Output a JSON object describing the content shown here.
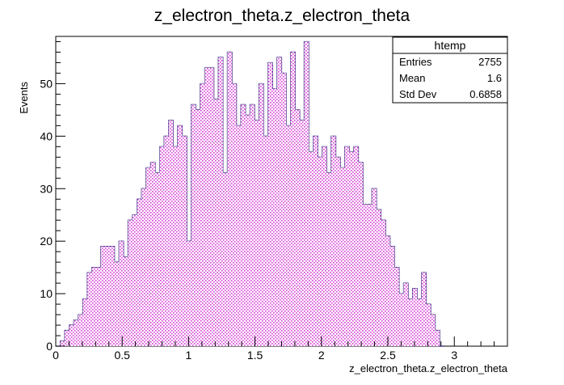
{
  "chart_data": {
    "type": "bar",
    "title": "z_electron_theta.z_electron_theta",
    "xlabel": "z_electron_theta.z_electron_theta",
    "ylabel": "Events",
    "xlim": [
      0,
      3.4
    ],
    "ylim": [
      0,
      59
    ],
    "bin_width": 0.034,
    "x_ticks": [
      0,
      0.5,
      1,
      1.5,
      2,
      2.5,
      3
    ],
    "x_tick_labels": [
      "0",
      "0.5",
      "1",
      "1.5",
      "2",
      "2.5",
      "3"
    ],
    "y_ticks": [
      0,
      10,
      20,
      30,
      40,
      50
    ],
    "y_tick_labels": [
      "0",
      "10",
      "20",
      "30",
      "40",
      "50"
    ],
    "values": [
      0,
      1,
      3,
      4,
      5,
      6,
      9,
      14,
      15,
      15,
      19,
      19,
      19,
      16,
      20,
      17,
      24,
      25,
      28,
      30,
      34,
      35,
      33,
      38,
      40,
      43,
      38,
      42,
      40,
      20,
      46,
      45,
      50,
      53,
      53,
      47,
      55,
      33,
      56,
      50,
      42,
      46,
      44,
      46,
      43,
      50,
      40,
      54,
      49,
      55,
      52,
      42,
      56,
      45,
      43,
      58,
      37,
      40,
      36,
      38,
      33,
      40,
      36,
      34,
      38,
      37,
      38,
      35,
      27,
      27,
      30,
      26,
      24,
      21,
      19,
      15,
      10,
      12,
      9,
      11,
      9,
      14,
      8,
      6,
      3,
      0
    ],
    "stats_box": {
      "title": "htemp",
      "rows": [
        {
          "label": "Entries",
          "value": "2755"
        },
        {
          "label": "Mean",
          "value": "1.6"
        },
        {
          "label": "Std Dev",
          "value": "0.6858"
        }
      ]
    },
    "colors": {
      "outline": "#2b1b7a",
      "fill_pattern": "#d33cd3"
    }
  }
}
